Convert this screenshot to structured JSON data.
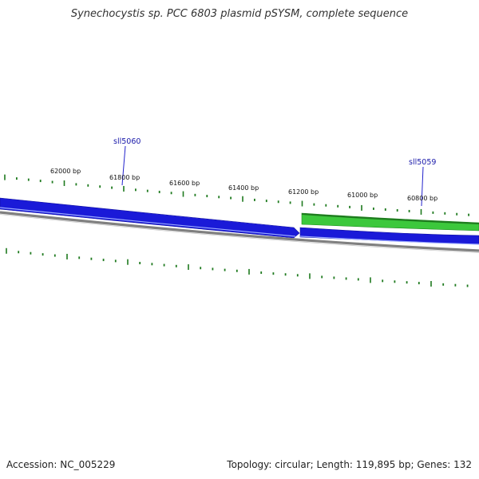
{
  "title": "Synechocystis sp. PCC 6803 plasmid pSYSM, complete sequence",
  "footer": {
    "accession": "Accession: NC_005229",
    "summary": "Topology: circular; Length: 119,895 bp; Genes: 132"
  },
  "colors": {
    "tick": "#1e7a1e",
    "forward_gene": "#1a1ad8",
    "reverse_gene": "#2fb82f",
    "backbone": "#808080",
    "gene_label": "#1a1aaa"
  },
  "ticks": [
    "62000 bp",
    "61800 bp",
    "61600 bp",
    "61400 bp",
    "61200 bp",
    "61000 bp",
    "60800 bp"
  ],
  "genes": [
    {
      "name": "sll5060",
      "strand": "forward"
    },
    {
      "name": "sll5059",
      "strand": "forward"
    }
  ]
}
